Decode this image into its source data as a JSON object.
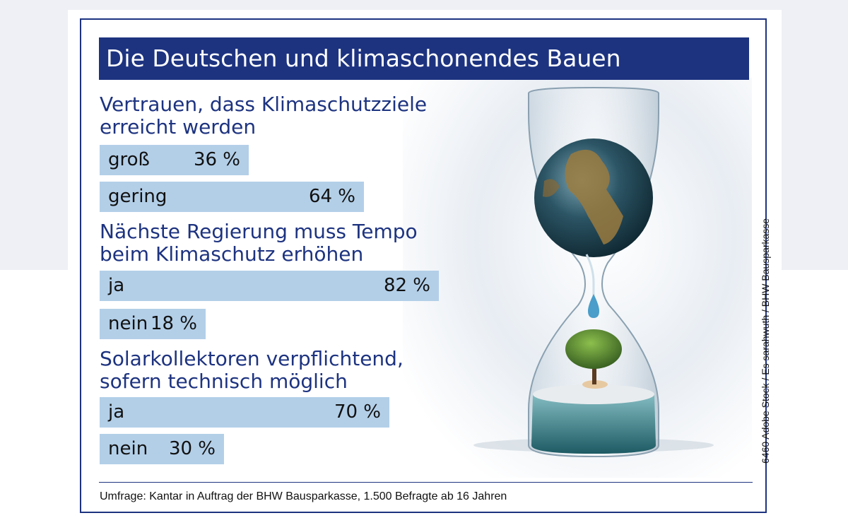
{
  "header": {
    "title": "Die Deutschen und klimaschonendes Bauen"
  },
  "colors": {
    "header_bg": "#1d3380",
    "title_text": "#1d3380",
    "bar_fill": "#b3cfe8"
  },
  "chart_data": {
    "type": "bar",
    "title": "Die Deutschen und klimaschonendes Bauen",
    "unit": "%",
    "groups": [
      {
        "question": "Vertrauen, dass Klimaschutzziele\nerreicht werden",
        "bars": [
          {
            "label": "groß",
            "value": 36,
            "value_label": "36 %"
          },
          {
            "label": "gering",
            "value": 64,
            "value_label": "64 %"
          }
        ]
      },
      {
        "question": "Nächste Regierung muss Tempo\nbeim Klimaschutz erhöhen",
        "bars": [
          {
            "label": "ja",
            "value": 82,
            "value_label": "82 %"
          },
          {
            "label": "nein",
            "value": 18,
            "value_label": "18 %"
          }
        ]
      },
      {
        "question": "Solarkollektoren verpflichtend,\nsofern technisch möglich",
        "bars": [
          {
            "label": "ja",
            "value": 70,
            "value_label": "70 %"
          },
          {
            "label": "nein",
            "value": 30,
            "value_label": "30 %"
          }
        ]
      }
    ]
  },
  "footer": {
    "source": "Umfrage: Kantar in Auftrag der BHW Bausparkasse, 1.500 Befragte ab 16 Jahren",
    "credit": "6460 Adobe Stock / Es sarahwuth / BHW Bausparkasse"
  },
  "image": {
    "subject": "hourglass-earth-tree"
  }
}
